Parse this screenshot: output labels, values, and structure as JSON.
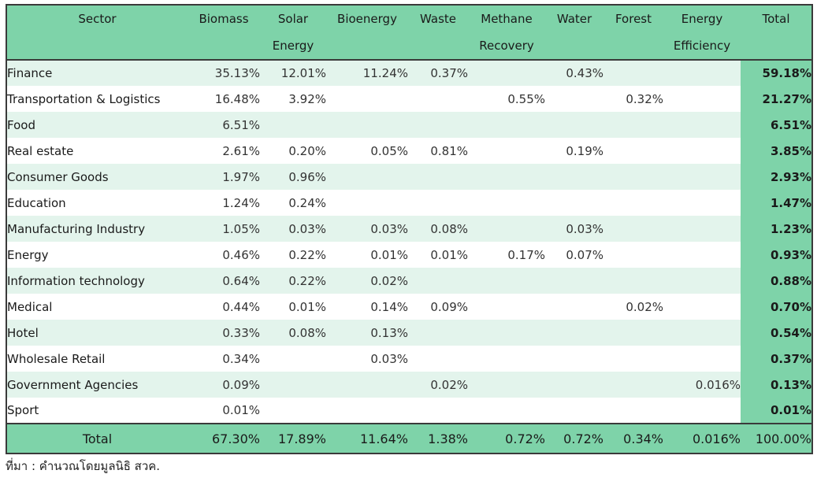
{
  "table": {
    "headers": [
      "Sector",
      "Biomass",
      "Solar Energy",
      "Bioenergy",
      "Waste",
      "Methane Recovery",
      "Water",
      "Forest",
      "Energy Efficiency",
      "Total"
    ],
    "header_lines": [
      [
        "Sector"
      ],
      [
        "Biomass"
      ],
      [
        "Solar",
        "Energy"
      ],
      [
        "Bioenergy"
      ],
      [
        "Waste"
      ],
      [
        "Methane",
        "Recovery"
      ],
      [
        "Water"
      ],
      [
        "Forest"
      ],
      [
        "Energy",
        "Efficiency"
      ],
      [
        "Total"
      ]
    ],
    "rows": [
      [
        "Finance",
        "35.13%",
        "12.01%",
        "11.24%",
        "0.37%",
        "",
        "0.43%",
        "",
        "",
        "59.18%"
      ],
      [
        "Transportation & Logistics",
        "16.48%",
        "3.92%",
        "",
        "",
        "0.55%",
        "",
        "0.32%",
        "",
        "21.27%"
      ],
      [
        "Food",
        "6.51%",
        "",
        "",
        "",
        "",
        "",
        "",
        "",
        "6.51%"
      ],
      [
        "Real estate",
        "2.61%",
        "0.20%",
        "0.05%",
        "0.81%",
        "",
        "0.19%",
        "",
        "",
        "3.85%"
      ],
      [
        "Consumer Goods",
        "1.97%",
        "0.96%",
        "",
        "",
        "",
        "",
        "",
        "",
        "2.93%"
      ],
      [
        "Education",
        "1.24%",
        "0.24%",
        "",
        "",
        "",
        "",
        "",
        "",
        "1.47%"
      ],
      [
        "Manufacturing Industry",
        "1.05%",
        "0.03%",
        "0.03%",
        "0.08%",
        "",
        "0.03%",
        "",
        "",
        "1.23%"
      ],
      [
        "Energy",
        "0.46%",
        "0.22%",
        "0.01%",
        "0.01%",
        "0.17%",
        "0.07%",
        "",
        "",
        "0.93%"
      ],
      [
        "Information technology",
        "0.64%",
        "0.22%",
        "0.02%",
        "",
        "",
        "",
        "",
        "",
        "0.88%"
      ],
      [
        "Medical",
        "0.44%",
        "0.01%",
        "0.14%",
        "0.09%",
        "",
        "",
        "0.02%",
        "",
        "0.70%"
      ],
      [
        "Hotel",
        "0.33%",
        "0.08%",
        "0.13%",
        "",
        "",
        "",
        "",
        "",
        "0.54%"
      ],
      [
        "Wholesale Retail",
        "0.34%",
        "",
        "0.03%",
        "",
        "",
        "",
        "",
        "",
        "0.37%"
      ],
      [
        "Government Agencies",
        "0.09%",
        "",
        "",
        "0.02%",
        "",
        "",
        "",
        "0.016%",
        "0.13%"
      ],
      [
        "Sport",
        "0.01%",
        "",
        "",
        "",
        "",
        "",
        "",
        "",
        "0.01%"
      ]
    ],
    "total_row": [
      "Total",
      "67.30%",
      "17.89%",
      "11.64%",
      "1.38%",
      "0.72%",
      "0.72%",
      "0.34%",
      "0.016%",
      "100.00%"
    ]
  },
  "source_note": "ที่มา : คำนวณโดยมูลนิธิ สวค.",
  "colors": {
    "header_bg": "#7ed3a9",
    "stripe_bg": "#e3f4ec",
    "border": "#3a3a3a"
  }
}
